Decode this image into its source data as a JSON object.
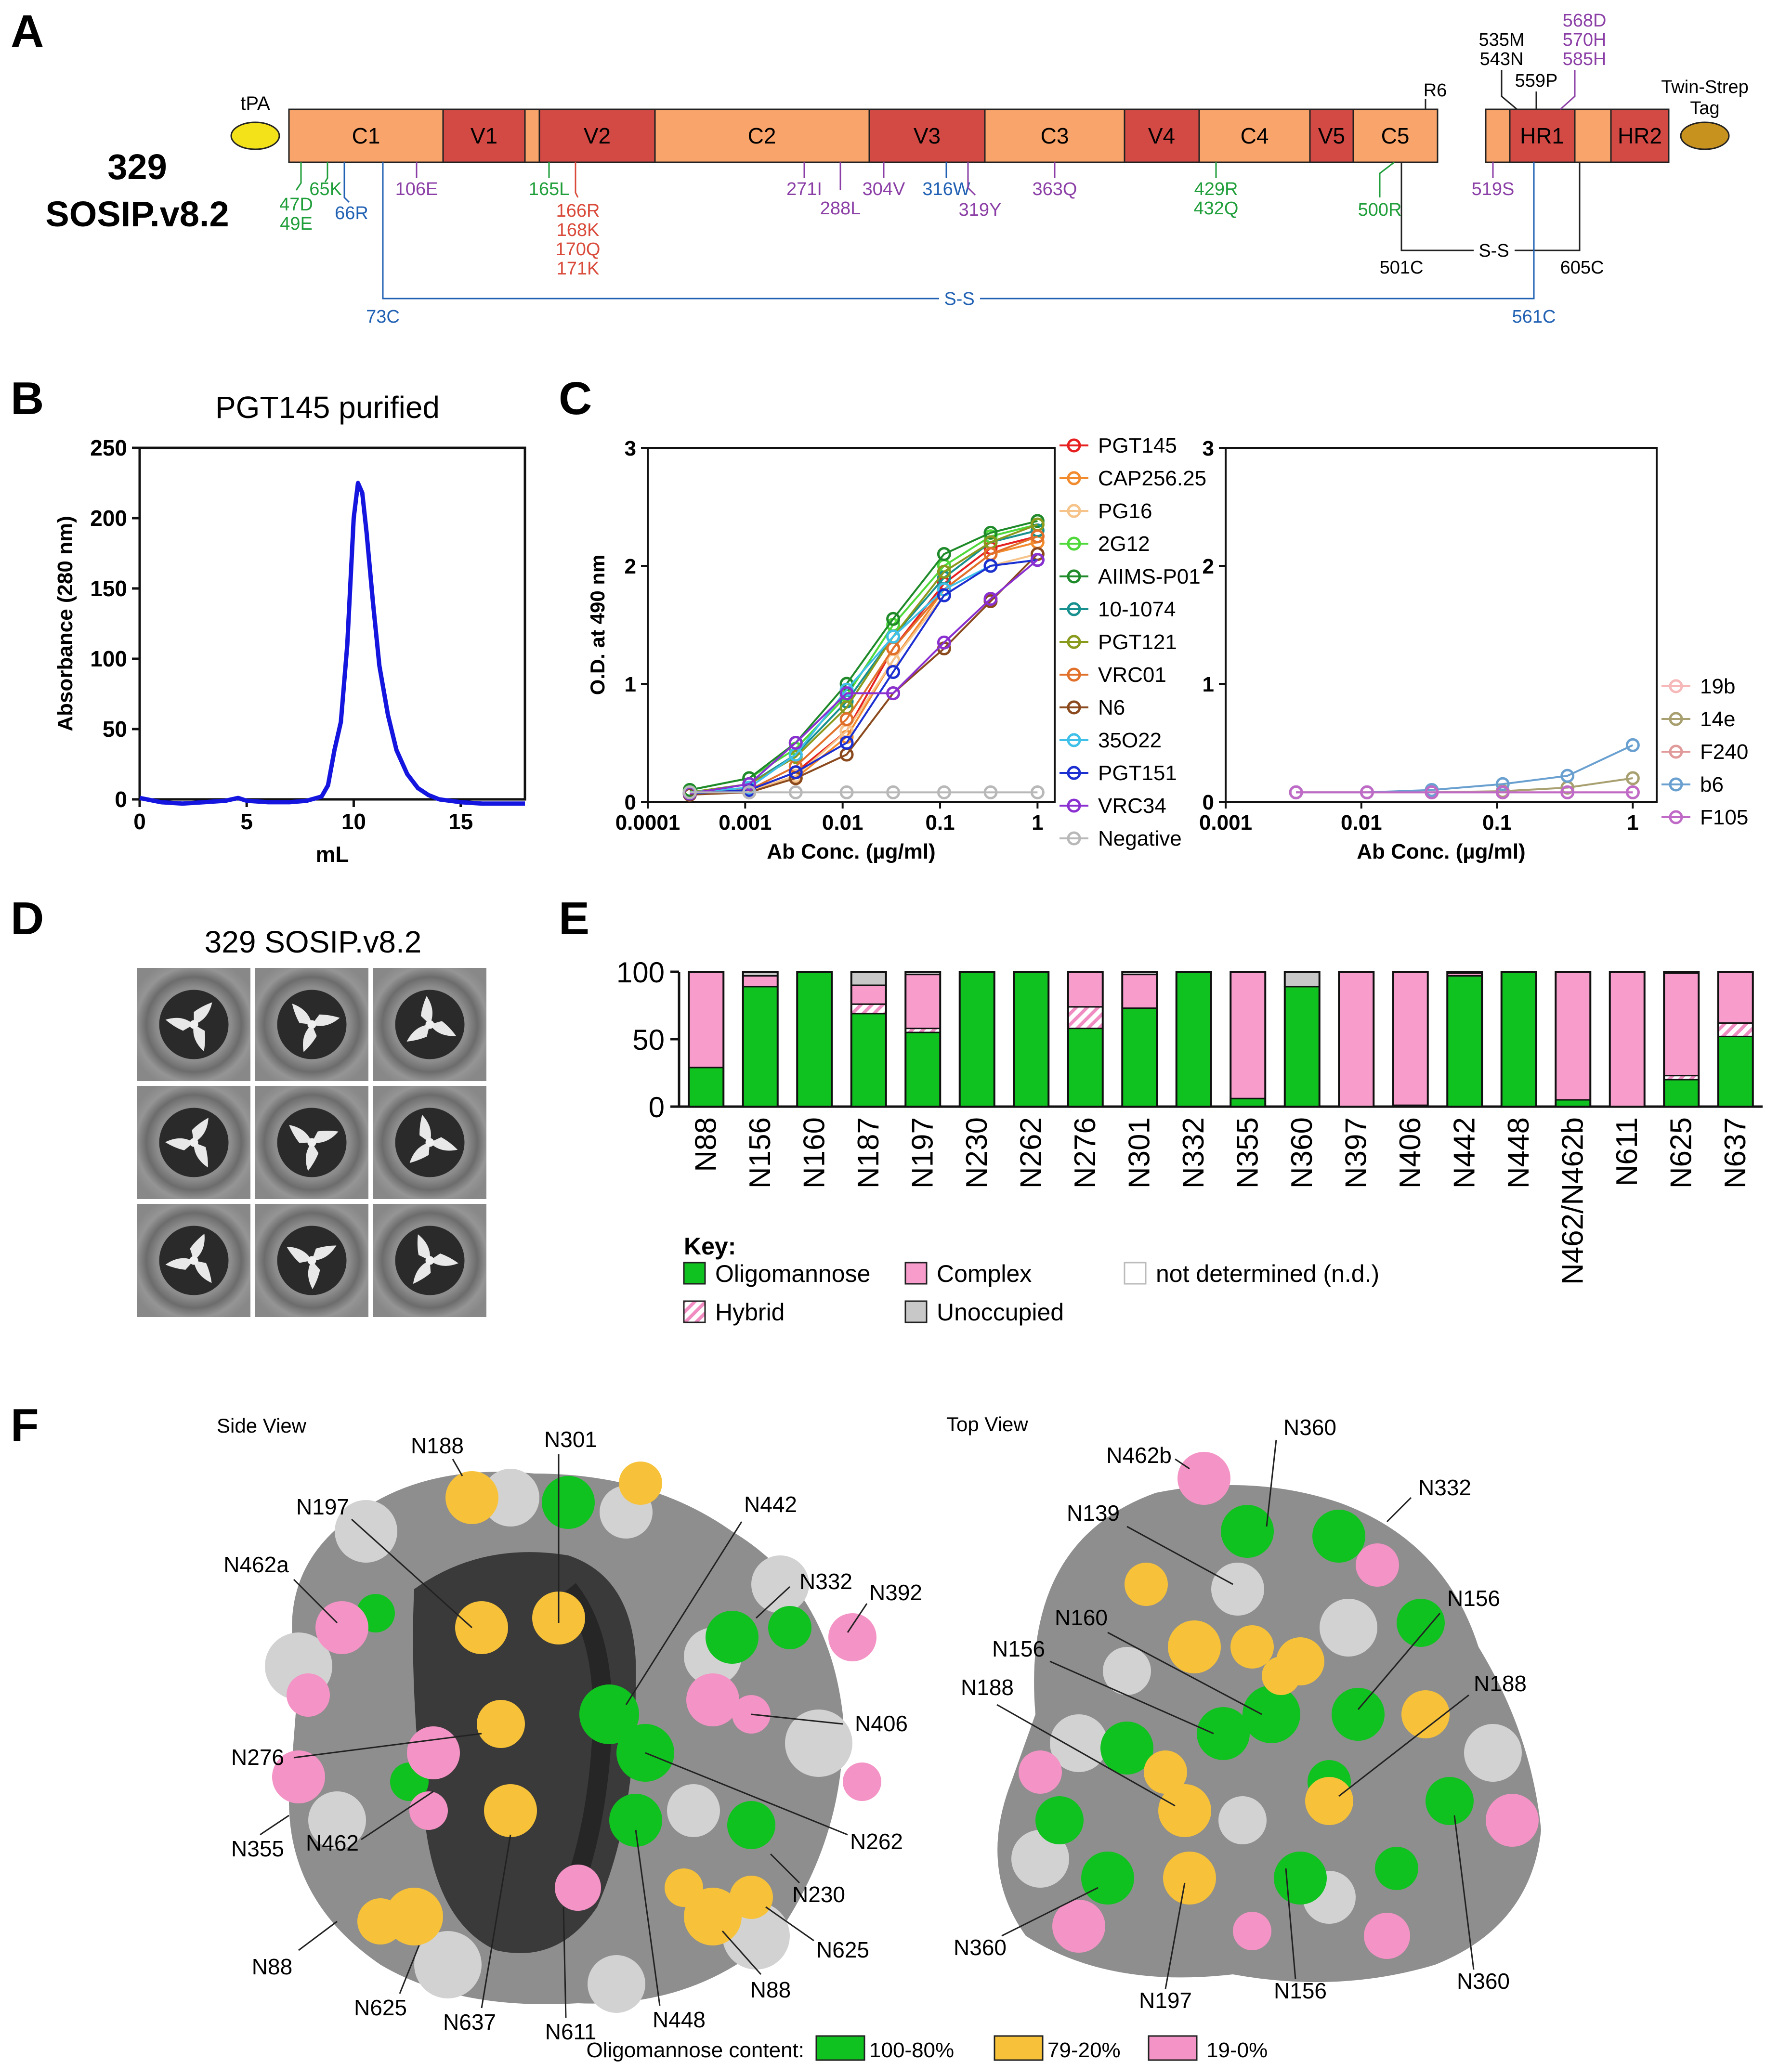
{
  "panels": {
    "A": {
      "letter": "A",
      "construct_line1": "329",
      "construct_line2": "SOSIP.v8.2",
      "tpa": "tPA",
      "tag_line1": "Twin-Strep",
      "tag_line2": "Tag",
      "domains": [
        "C1",
        "V1",
        "V2",
        "C2",
        "V3",
        "C3",
        "V4",
        "C4",
        "V5",
        "C5",
        "HR1",
        "HR2"
      ],
      "top_labels": {
        "r6": "R6",
        "m535": "535M",
        "n543": "543N",
        "p559": "559P",
        "d568": "568D",
        "h570": "570H",
        "h585": "585H"
      },
      "bottom_labels": {
        "d47": "47D",
        "e49": "49E",
        "k65": "65K",
        "r66": "66R",
        "e106": "106E",
        "l165": "165L",
        "r166": "166R",
        "k168": "168K",
        "q170": "170Q",
        "k171": "171K",
        "i271": "271I",
        "l288": "288L",
        "v304": "304V",
        "w316": "316W",
        "y319": "319Y",
        "q363": "363Q",
        "r429": "429R",
        "q432": "432Q",
        "r500": "500R",
        "s519": "519S"
      },
      "disulfides": {
        "c501": "501C",
        "ss1": "S-S",
        "c605": "605C",
        "c73": "73C",
        "ss2": "S-S",
        "c561": "561C"
      },
      "colors": {
        "constant": "#f9a46b",
        "variable": "#d34a45",
        "green": "#1f9e3a",
        "blue": "#2161b3",
        "purple": "#8b3fa6",
        "red": "#d94a3a",
        "tpa": "#f3e21a",
        "tag": "#c8921e"
      }
    },
    "B": {
      "letter": "B",
      "title": "PGT145 purified"
    },
    "C": {
      "letter": "C"
    },
    "D": {
      "letter": "D",
      "title": "329 SOSIP.v8.2"
    },
    "E": {
      "letter": "E",
      "key_title": "Key:",
      "key_items": [
        "Oligomannose",
        "Complex",
        "not determined (n.d.)",
        "Hybrid",
        "Unoccupied"
      ]
    },
    "F": {
      "letter": "F",
      "side_title": "Side View",
      "top_title": "Top View",
      "side_labels": [
        "N188",
        "N301",
        "N197",
        "N442",
        "N462a",
        "N332",
        "N392",
        "N406",
        "N276",
        "N262",
        "N355",
        "N462",
        "N230",
        "N625",
        "N88",
        "N625",
        "N637",
        "N611",
        "N448",
        "N88"
      ],
      "top_labels": [
        "N360",
        "N462b",
        "N332",
        "N139",
        "N156",
        "N160",
        "N156",
        "N188",
        "N188",
        "N360",
        "N197",
        "N156",
        "N360"
      ],
      "legend_label": "Oligomannose content:",
      "legend_items": [
        "100-80%",
        "79-20%",
        "19-0%"
      ],
      "legend_colors": [
        "#0fc21f",
        "#f7c239",
        "#f493c5"
      ]
    }
  },
  "chart_data": [
    {
      "id": "B",
      "type": "line",
      "title": "PGT145 purified",
      "xlabel": "mL",
      "ylabel": "Absorbance (280 nm)",
      "xlim": [
        0,
        18
      ],
      "ylim": [
        0,
        250
      ],
      "xticks": [
        0,
        5,
        10,
        15
      ],
      "yticks": [
        0,
        50,
        100,
        150,
        200,
        250
      ],
      "color": "#1515e0",
      "x": [
        0,
        1,
        2,
        3,
        4,
        4.6,
        5,
        6,
        7,
        7.8,
        8.5,
        8.8,
        9.1,
        9.4,
        9.7,
        10,
        10.2,
        10.4,
        10.6,
        10.9,
        11.2,
        11.6,
        12,
        12.5,
        13,
        13.5,
        14,
        15,
        16,
        17,
        18
      ],
      "y": [
        1,
        -2,
        -3,
        -2,
        -1,
        1,
        -1,
        -2,
        -2,
        -1,
        2,
        10,
        35,
        55,
        110,
        200,
        225,
        218,
        190,
        140,
        95,
        60,
        35,
        18,
        8,
        3,
        0,
        -2,
        -3,
        -3,
        -3
      ]
    },
    {
      "id": "C-left",
      "type": "line",
      "xscale": "log",
      "xlabel": "Ab Conc. (µg/ml)",
      "ylabel": "O.D. at 490 nm",
      "xlim": [
        0.0001,
        1.5
      ],
      "ylim": [
        0,
        3
      ],
      "xtick_labels": [
        "0.0001",
        "0.001",
        "0.01",
        "0.1",
        "1"
      ],
      "yticks": [
        0,
        1,
        2,
        3
      ],
      "x": [
        0.00027,
        0.0011,
        0.0033,
        0.011,
        0.033,
        0.11,
        0.33,
        1
      ],
      "series": [
        {
          "name": "PGT145",
          "color": "#e62020",
          "values": [
            0.08,
            0.1,
            0.25,
            0.6,
            1.3,
            1.85,
            2.15,
            2.25
          ]
        },
        {
          "name": "CAP256.25",
          "color": "#f28a2e",
          "values": [
            0.07,
            0.08,
            0.2,
            0.55,
            1.2,
            1.8,
            2.1,
            2.2
          ]
        },
        {
          "name": "PG16",
          "color": "#f6c48a",
          "values": [
            0.07,
            0.09,
            0.22,
            0.6,
            1.2,
            1.75,
            2.0,
            2.1
          ]
        },
        {
          "name": "2G12",
          "color": "#4fd83a",
          "values": [
            0.1,
            0.2,
            0.45,
            0.9,
            1.5,
            2.0,
            2.25,
            2.35
          ]
        },
        {
          "name": "AIIMS-P01",
          "color": "#1f8a2a",
          "values": [
            0.1,
            0.2,
            0.5,
            1.0,
            1.55,
            2.1,
            2.28,
            2.38
          ]
        },
        {
          "name": "10-1074",
          "color": "#17908f",
          "values": [
            0.08,
            0.15,
            0.4,
            0.85,
            1.4,
            1.9,
            2.2,
            2.3
          ]
        },
        {
          "name": "PGT121",
          "color": "#8a9a1c",
          "values": [
            0.08,
            0.15,
            0.38,
            0.8,
            1.4,
            1.95,
            2.2,
            2.35
          ]
        },
        {
          "name": "VRC01",
          "color": "#e0702a",
          "values": [
            0.07,
            0.1,
            0.3,
            0.7,
            1.3,
            1.8,
            2.1,
            2.25
          ]
        },
        {
          "name": "N6",
          "color": "#8b4a1e",
          "values": [
            0.06,
            0.08,
            0.2,
            0.4,
            0.92,
            1.3,
            1.7,
            2.1
          ]
        },
        {
          "name": "35O22",
          "color": "#3fc0e8",
          "values": [
            0.08,
            0.12,
            0.4,
            0.95,
            1.4,
            1.8,
            2.0,
            2.05
          ]
        },
        {
          "name": "PGT151",
          "color": "#1c2fd0",
          "values": [
            0.07,
            0.1,
            0.25,
            0.5,
            1.1,
            1.75,
            2.0,
            2.05
          ]
        },
        {
          "name": "VRC34",
          "color": "#8a2fd0",
          "values": [
            0.07,
            0.15,
            0.5,
            0.92,
            0.92,
            1.35,
            1.72,
            2.05
          ]
        },
        {
          "name": "Negative",
          "color": "#b8b8b8",
          "values": [
            0.08,
            0.08,
            0.08,
            0.08,
            0.08,
            0.08,
            0.08,
            0.08
          ]
        }
      ]
    },
    {
      "id": "C-right",
      "type": "line",
      "xscale": "log",
      "xlabel": "Ab Conc. (µg/ml)",
      "ylabel": "",
      "xlim": [
        0.001,
        1.5
      ],
      "ylim": [
        0,
        3
      ],
      "xtick_labels": [
        "0.001",
        "0.01",
        "0.1",
        "1"
      ],
      "yticks": [
        0,
        1,
        2,
        3
      ],
      "x": [
        0.0033,
        0.011,
        0.033,
        0.11,
        0.33,
        1
      ],
      "series": [
        {
          "name": "19b",
          "color": "#f6b8b8",
          "values": [
            0.08,
            0.08,
            0.08,
            0.08,
            0.08,
            0.08
          ]
        },
        {
          "name": "14e",
          "color": "#a8a070",
          "values": [
            0.08,
            0.08,
            0.08,
            0.09,
            0.12,
            0.2
          ]
        },
        {
          "name": "F240",
          "color": "#e09a9a",
          "values": [
            0.08,
            0.08,
            0.08,
            0.08,
            0.08,
            0.08
          ]
        },
        {
          "name": "b6",
          "color": "#6aa0d0",
          "values": [
            0.08,
            0.08,
            0.1,
            0.15,
            0.22,
            0.48
          ]
        },
        {
          "name": "F105",
          "color": "#c06ac8",
          "values": [
            0.08,
            0.08,
            0.08,
            0.08,
            0.08,
            0.08
          ]
        }
      ]
    },
    {
      "id": "E",
      "type": "bar",
      "stacked": true,
      "ylim": [
        0,
        100
      ],
      "yticks": [
        0,
        50,
        100
      ],
      "categories": [
        "N88",
        "N156",
        "N160",
        "N187",
        "N197",
        "N230",
        "N262",
        "N276",
        "N301",
        "N332",
        "N355",
        "N360",
        "N397",
        "N406",
        "N442",
        "N448",
        "N462/N462b",
        "N611",
        "N625",
        "N637"
      ],
      "series": [
        {
          "name": "Oligomannose",
          "color": "#0fc21f",
          "values": [
            29,
            89,
            100,
            69,
            55,
            100,
            100,
            58,
            73,
            100,
            6,
            89,
            0,
            1,
            97,
            100,
            5,
            0,
            20,
            52
          ]
        },
        {
          "name": "Hybrid",
          "color": "#f3b6d8",
          "values": [
            0,
            0,
            0,
            7,
            3,
            0,
            0,
            16,
            0,
            0,
            0,
            0,
            0,
            0,
            0,
            0,
            0,
            0,
            3,
            10
          ]
        },
        {
          "name": "Complex",
          "color": "#f79ccb",
          "values": [
            71,
            8,
            0,
            14,
            40,
            0,
            0,
            26,
            25,
            0,
            94,
            0,
            100,
            99,
            2,
            0,
            95,
            100,
            76,
            38
          ]
        },
        {
          "name": "Unoccupied",
          "color": "#c8c8c8",
          "values": [
            0,
            3,
            0,
            10,
            2,
            0,
            0,
            0,
            2,
            0,
            0,
            11,
            0,
            0,
            1,
            0,
            0,
            0,
            1,
            0
          ]
        }
      ]
    }
  ]
}
